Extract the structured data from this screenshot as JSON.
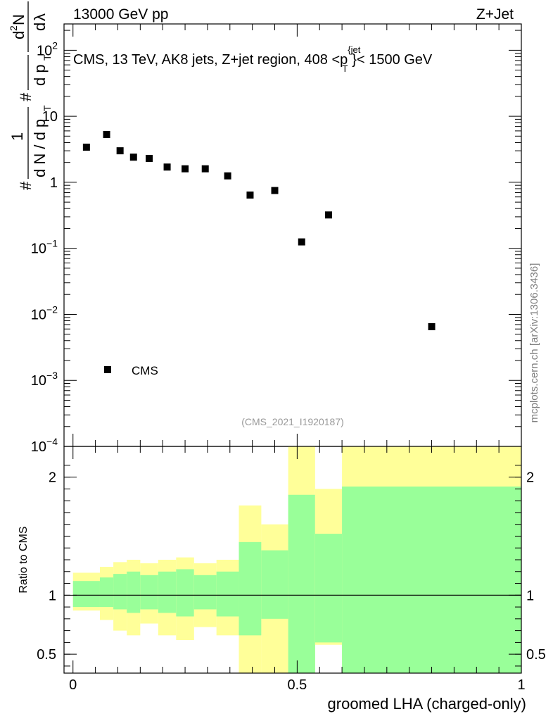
{
  "header": {
    "left": "13000 GeV pp",
    "right": "Z+Jet"
  },
  "watermark": "mcplots.cern.ch [arXiv:1306.3436]",
  "chart_data": [
    {
      "type": "scatter",
      "title": "CMS, 13 TeV, AK8 jets, Z+jet region, 408 <p",
      "title_sup": "{jet",
      "title_sub": "T",
      "title_tail": "}< 1500 GeV",
      "ylabel_parts": [
        "#",
        "1",
        "d N / d p",
        "T",
        "#",
        "d p",
        "T",
        "d",
        "2",
        "N",
        "d",
        "λ"
      ],
      "yscale": "log",
      "ylim": [
        0.0001,
        250
      ],
      "xlim": [
        -0.02,
        1.0
      ],
      "yticks": [
        {
          "v": 100,
          "base": "10",
          "exp": "2"
        },
        {
          "v": 10,
          "base": "10",
          "exp": ""
        },
        {
          "v": 1,
          "base": "1",
          "exp": ""
        },
        {
          "v": 0.1,
          "base": "10",
          "exp": "−1"
        },
        {
          "v": 0.01,
          "base": "10",
          "exp": "−2"
        },
        {
          "v": 0.001,
          "base": "10",
          "exp": "−3"
        },
        {
          "v": 0.0001,
          "base": "10",
          "exp": "−4"
        }
      ],
      "series": [
        {
          "name": "CMS",
          "color": "#000000",
          "x": [
            0.03,
            0.075,
            0.105,
            0.135,
            0.17,
            0.21,
            0.25,
            0.295,
            0.345,
            0.395,
            0.45,
            0.51,
            0.57,
            0.8
          ],
          "y": [
            3.4,
            5.3,
            3.0,
            2.4,
            2.3,
            1.7,
            1.6,
            1.6,
            1.25,
            0.64,
            0.75,
            0.125,
            0.32,
            0.0065
          ]
        }
      ],
      "legend": {
        "label": "CMS",
        "position": "bottom-left"
      },
      "annotation": "(CMS_2021_I1920187)"
    },
    {
      "type": "area",
      "ylabel": "Ratio to CMS",
      "xlabel": "groomed LHA (charged-only)",
      "ylim": [
        0.34,
        2.26
      ],
      "xlim": [
        -0.02,
        1.0
      ],
      "xticks": [
        {
          "v": 0,
          "label": "0"
        },
        {
          "v": 0.5,
          "label": "0.5"
        },
        {
          "v": 1,
          "label": "1"
        }
      ],
      "yticks": [
        {
          "v": 2,
          "label": "2"
        },
        {
          "v": 1,
          "label": "1"
        },
        {
          "v": 0.5,
          "label": "0.5"
        }
      ],
      "reference_line": 1,
      "band_colors": {
        "outer": "#ffff99",
        "inner": "#99ff99"
      },
      "bins": [
        0,
        0.06,
        0.09,
        0.12,
        0.15,
        0.19,
        0.23,
        0.27,
        0.32,
        0.37,
        0.42,
        0.48,
        0.54,
        0.6,
        1.0
      ],
      "outer_hi": [
        1.19,
        1.24,
        1.28,
        1.3,
        1.27,
        1.3,
        1.32,
        1.27,
        1.3,
        1.76,
        1.6,
        2.3,
        1.9,
        2.3
      ],
      "outer_lo": [
        0.87,
        0.79,
        0.7,
        0.66,
        0.76,
        0.66,
        0.62,
        0.73,
        0.66,
        0.32,
        0.32,
        0.32,
        0.58,
        0.32
      ],
      "inner_hi": [
        1.12,
        1.15,
        1.18,
        1.2,
        1.17,
        1.2,
        1.22,
        1.17,
        1.2,
        1.45,
        1.38,
        1.85,
        1.52,
        1.92
      ],
      "inner_lo": [
        0.9,
        0.9,
        0.88,
        0.85,
        0.88,
        0.85,
        0.82,
        0.88,
        0.82,
        0.66,
        0.8,
        0.32,
        0.6,
        0.32
      ],
      "inner_gap": [
        false,
        false,
        false,
        false,
        false,
        false,
        false,
        false,
        false,
        false,
        true,
        false,
        false,
        false
      ]
    }
  ]
}
